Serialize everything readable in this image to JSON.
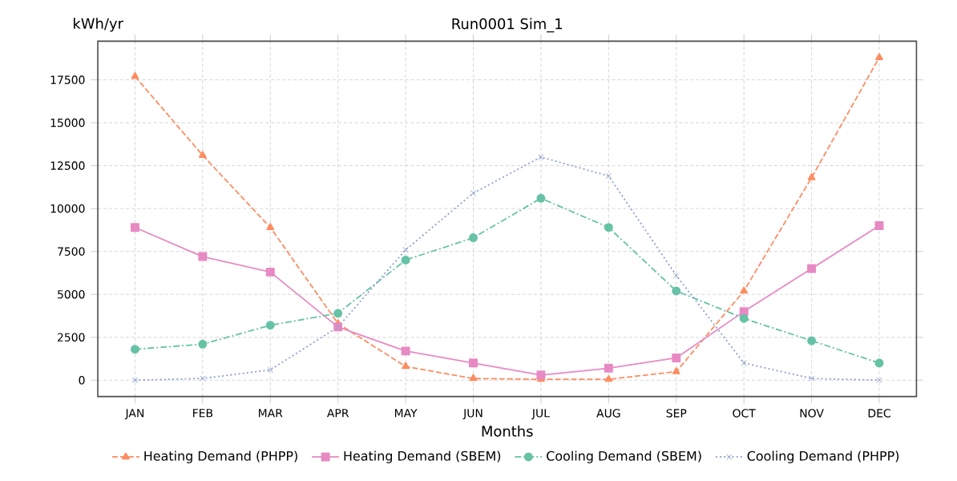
{
  "chart_data": {
    "type": "line",
    "title": "Run0001 Sim_1",
    "xlabel": "Months",
    "ylabel": "kWh/yr",
    "categories": [
      "JAN",
      "FEB",
      "MAR",
      "APR",
      "MAY",
      "JUN",
      "JUL",
      "AUG",
      "SEP",
      "OCT",
      "NOV",
      "DEC"
    ],
    "ylim": [
      -950,
      19750
    ],
    "yticks": [
      0,
      2500,
      5000,
      7500,
      10000,
      12500,
      15000,
      17500
    ],
    "grid": true,
    "legend": "bottom",
    "series": [
      {
        "name": "Heating Demand (PHPP)",
        "color": "#fc8d62",
        "marker": "triangle",
        "line_style": "dashed",
        "values": [
          17700,
          13100,
          8900,
          3300,
          800,
          100,
          50,
          50,
          500,
          5200,
          11800,
          18800
        ]
      },
      {
        "name": "Heating Demand (SBEM)",
        "color": "#e78ac3",
        "marker": "square",
        "line_style": "solid",
        "values": [
          8900,
          7200,
          6300,
          3100,
          1700,
          1000,
          300,
          700,
          1300,
          4000,
          6500,
          9000
        ]
      },
      {
        "name": "Cooling Demand (SBEM)",
        "color": "#66c2a5",
        "marker": "circle",
        "line_style": "dashdot",
        "values": [
          1800,
          2100,
          3200,
          3900,
          7000,
          8300,
          10600,
          8900,
          5200,
          3600,
          2300,
          1000
        ]
      },
      {
        "name": "Cooling Demand (PHPP)",
        "color": "#8da0cb",
        "marker": "cross",
        "line_style": "dotted",
        "values": [
          0,
          100,
          600,
          3100,
          7600,
          10900,
          13000,
          11900,
          6100,
          1000,
          100,
          0
        ]
      }
    ]
  }
}
